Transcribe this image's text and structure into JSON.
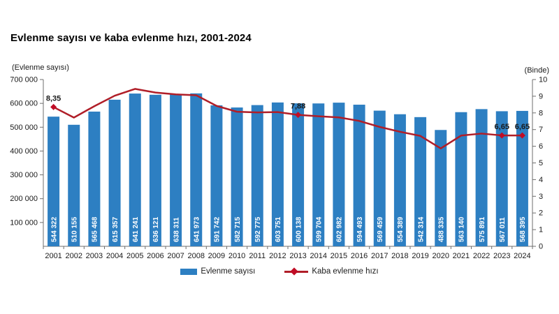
{
  "title": "Evlenme sayısı ve kaba evlenme hızı, 2001-2024",
  "axes": {
    "left_caption": "(Evlenme sayısı)",
    "right_caption": "(Binde)",
    "left_tick_labels": [
      "700 000",
      "600 000",
      "500 000",
      "400 000",
      "300 000",
      "200 000",
      "100 000"
    ],
    "right_tick_labels": [
      "10",
      "9",
      "8",
      "7",
      "6",
      "5",
      "4",
      "3",
      "2",
      "1",
      "0"
    ]
  },
  "legend": {
    "bar_label": "Evlenme sayısı",
    "line_label": "Kaba evlenme hızı"
  },
  "colors": {
    "bar": "#2D7FC2",
    "bar_value_text": "#FFFFFF",
    "line": "#B01E28",
    "marker": "#C00D26",
    "axis": "#6E6E6E",
    "tick_text": "#1a1a1a",
    "point_label_text": "#1a1a1a"
  },
  "chart_data": {
    "type": "bar+line",
    "title": "Evlenme sayısı ve kaba evlenme hızı, 2001-2024",
    "categories": [
      2001,
      2002,
      2003,
      2004,
      2005,
      2006,
      2007,
      2008,
      2009,
      2010,
      2011,
      2012,
      2013,
      2014,
      2015,
      2016,
      2017,
      2018,
      2019,
      2020,
      2021,
      2022,
      2023,
      2024
    ],
    "series": [
      {
        "name": "Evlenme sayısı",
        "type": "bar",
        "axis": "left",
        "values": [
          544322,
          510155,
          565468,
          615357,
          641241,
          636121,
          638311,
          641973,
          591742,
          582715,
          592775,
          603751,
          600138,
          599704,
          602982,
          594493,
          569459,
          554389,
          542314,
          488335,
          563140,
          575891,
          567011,
          568395
        ]
      },
      {
        "name": "Kaba evlenme hızı",
        "type": "line",
        "axis": "right",
        "values": [
          8.35,
          7.72,
          8.4,
          9.03,
          9.44,
          9.22,
          9.11,
          9.06,
          8.42,
          8.07,
          8.03,
          8.05,
          7.88,
          7.8,
          7.73,
          7.52,
          7.16,
          6.87,
          6.62,
          5.87,
          6.64,
          6.76,
          6.65,
          6.65
        ]
      }
    ],
    "point_labels": [
      {
        "year": 2001,
        "label": "8,35"
      },
      {
        "year": 2013,
        "label": "7,88"
      },
      {
        "year": 2023,
        "label": "6,65"
      },
      {
        "year": 2024,
        "label": "6,65"
      }
    ],
    "left_axis": {
      "label": "(Evlenme sayısı)",
      "min": 0,
      "max": 700000,
      "tick_step": 100000
    },
    "right_axis": {
      "label": "(Binde)",
      "min": 0,
      "max": 10,
      "tick_step": 1
    },
    "grid": false,
    "legend_position": "bottom"
  }
}
